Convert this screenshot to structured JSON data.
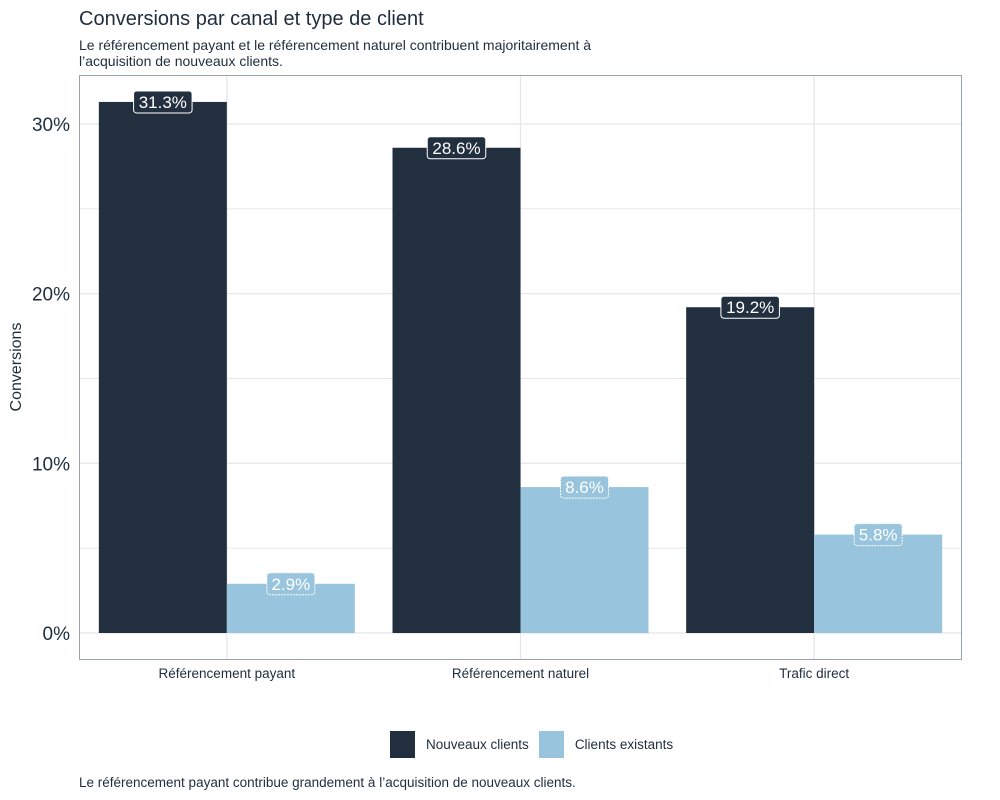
{
  "chart_data": {
    "type": "bar",
    "title": "Conversions par canal et type de client",
    "subtitle": "Le référencement payant et le référencement naturel contribuent majoritairement à l’acquisition de nouveaux clients.",
    "caption": "Le référencement payant contribue grandement à l’acquisition de nouveaux clients.",
    "xlabel": "",
    "ylabel": "Conversions",
    "ylim": [
      0,
      32.5
    ],
    "yticks": [
      0,
      10,
      20,
      30
    ],
    "ytick_labels": [
      "0%",
      "10%",
      "20%",
      "30%"
    ],
    "grid": true,
    "legend_position": "bottom",
    "categories": [
      "Référencement payant",
      "Référencement naturel",
      "Trafic direct"
    ],
    "series": [
      {
        "name": "Nouveaux clients",
        "color": "#212f3f",
        "values": [
          31.3,
          28.6,
          19.2
        ],
        "labels": [
          "31.3%",
          "28.6%",
          "19.2%"
        ]
      },
      {
        "name": "Clients existants",
        "color": "#98c4dd",
        "values": [
          2.9,
          8.6,
          5.8
        ],
        "labels": [
          "2.9%",
          "8.6%",
          "5.8%"
        ]
      }
    ]
  }
}
